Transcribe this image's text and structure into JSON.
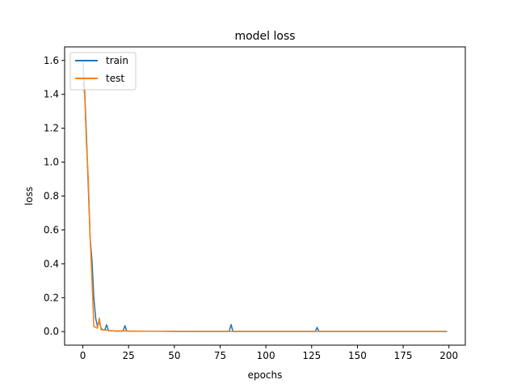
{
  "chart_data": {
    "type": "line",
    "title": "model loss",
    "xlabel": "epochs",
    "ylabel": "loss",
    "xlim": [
      -9.95,
      208.95
    ],
    "ylim": [
      -0.08,
      1.68
    ],
    "x_ticks": [
      0,
      25,
      50,
      75,
      100,
      125,
      150,
      175,
      200
    ],
    "y_ticks": [
      0.0,
      0.2,
      0.4,
      0.6,
      0.8,
      1.0,
      1.2,
      1.4,
      1.6
    ],
    "x_tick_labels": [
      "0",
      "25",
      "50",
      "75",
      "100",
      "125",
      "150",
      "175",
      "200"
    ],
    "y_tick_labels": [
      "0.0",
      "0.2",
      "0.4",
      "0.6",
      "0.8",
      "1.0",
      "1.2",
      "1.4",
      "1.6"
    ],
    "grid": false,
    "legend_position": "upper left",
    "series": [
      {
        "name": "train",
        "color": "#1f77b4",
        "points": [
          [
            0,
            1.6
          ],
          [
            1,
            1.42
          ],
          [
            2,
            1.15
          ],
          [
            3,
            0.85
          ],
          [
            4,
            0.55
          ],
          [
            5,
            0.42
          ],
          [
            6,
            0.2
          ],
          [
            7,
            0.08
          ],
          [
            8,
            0.03
          ],
          [
            9,
            0.06
          ],
          [
            10,
            0.02
          ],
          [
            11,
            0.01
          ],
          [
            12,
            0.01
          ],
          [
            13,
            0.04
          ],
          [
            14,
            0.005
          ],
          [
            16,
            0.005
          ],
          [
            18,
            0.003
          ],
          [
            20,
            0.003
          ],
          [
            22,
            0.003
          ],
          [
            23,
            0.035
          ],
          [
            24,
            0.003
          ],
          [
            26,
            0.003
          ],
          [
            30,
            0.002
          ],
          [
            40,
            0.002
          ],
          [
            50,
            0.001
          ],
          [
            60,
            0.001
          ],
          [
            70,
            0.001
          ],
          [
            80,
            0.001
          ],
          [
            81,
            0.042
          ],
          [
            82,
            0.001
          ],
          [
            90,
            0.001
          ],
          [
            100,
            0.001
          ],
          [
            110,
            0.001
          ],
          [
            120,
            0.001
          ],
          [
            127,
            0.001
          ],
          [
            128,
            0.025
          ],
          [
            129,
            0.001
          ],
          [
            140,
            0.001
          ],
          [
            150,
            0.001
          ],
          [
            160,
            0.001
          ],
          [
            170,
            0.001
          ],
          [
            180,
            0.001
          ],
          [
            190,
            0.001
          ],
          [
            199,
            0.001
          ]
        ]
      },
      {
        "name": "test",
        "color": "#ff7f0e",
        "points": [
          [
            0,
            1.47
          ],
          [
            1,
            1.4
          ],
          [
            2,
            1.1
          ],
          [
            3,
            0.9
          ],
          [
            4,
            0.55
          ],
          [
            5,
            0.3
          ],
          [
            6,
            0.03
          ],
          [
            7,
            0.025
          ],
          [
            8,
            0.02
          ],
          [
            9,
            0.08
          ],
          [
            10,
            0.01
          ],
          [
            11,
            0.012
          ],
          [
            12,
            0.008
          ],
          [
            13,
            0.01
          ],
          [
            14,
            0.006
          ],
          [
            16,
            0.005
          ],
          [
            18,
            0.004
          ],
          [
            20,
            0.004
          ],
          [
            25,
            0.003
          ],
          [
            30,
            0.003
          ],
          [
            40,
            0.002
          ],
          [
            50,
            0.002
          ],
          [
            60,
            0.001
          ],
          [
            80,
            0.001
          ],
          [
            100,
            0.001
          ],
          [
            120,
            0.001
          ],
          [
            140,
            0.001
          ],
          [
            160,
            0.001
          ],
          [
            180,
            0.001
          ],
          [
            199,
            0.001
          ]
        ]
      }
    ]
  }
}
